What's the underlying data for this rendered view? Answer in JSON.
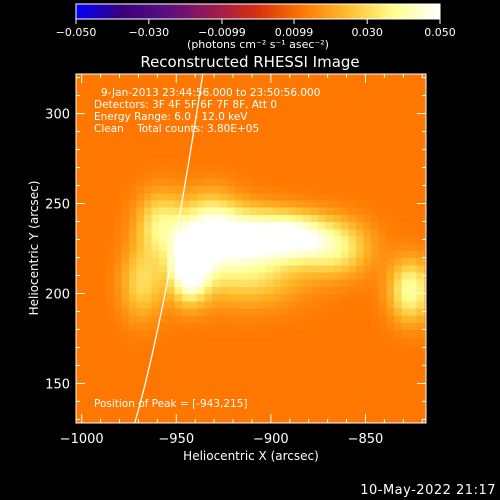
{
  "colorbar": {
    "ticks": [
      "-0.050",
      "-0.030",
      "-0.0099",
      "0.0099",
      "0.030",
      "0.050"
    ],
    "tick_values": [
      -0.05,
      -0.03,
      -0.0099,
      0.0099,
      0.03,
      0.05
    ],
    "range": [
      -0.05,
      0.05
    ],
    "units": "(photons cm⁻² s⁻¹ asec⁻²)",
    "colors": [
      "#0000ff",
      "#3a007a",
      "#5a0e80",
      "#9a1a50",
      "#d83010",
      "#ff7a00",
      "#ffc030",
      "#ffff90",
      "#ffffff"
    ]
  },
  "chart_data": {
    "type": "heatmap",
    "title": "Reconstructed RHESSI Image",
    "xlabel": "Heliocentric X (arcsec)",
    "ylabel": "Heliocentric Y (arcsec)",
    "xlim": [
      -1003,
      -818
    ],
    "ylim": [
      128,
      322
    ],
    "xticks": [
      -1000,
      -950,
      -900,
      -850
    ],
    "yticks": [
      150,
      200,
      250,
      300
    ],
    "xtick_labels": [
      "−1000",
      "−950",
      "−900",
      "−850"
    ],
    "ytick_labels": [
      "150",
      "200",
      "250",
      "300"
    ],
    "annotations": [
      "9-Jan-2013 23:44:56.000 to 23:50:56.000",
      "Detectors: 3F 4F 5F 6F 7F 8F, Att 0",
      "Energy Range: 6.0 - 12.0 keV",
      "Clean    Total counts: 3.80E+05"
    ],
    "peak_label": "Position of Peak = [-943,215]",
    "peak": [
      -943,
      215
    ],
    "solar_limb": [
      [
        -972,
        128
      ],
      [
        -955,
        205
      ],
      [
        -936,
        322
      ]
    ],
    "background_level": 0.012,
    "sources": [
      {
        "x": -943,
        "y": 216,
        "sx": 7,
        "sy": 13,
        "amp": 0.048
      },
      {
        "x": -932,
        "y": 235,
        "sx": 10,
        "sy": 14,
        "amp": 0.03
      },
      {
        "x": -912,
        "y": 232,
        "sx": 14,
        "sy": 11,
        "amp": 0.034
      },
      {
        "x": -888,
        "y": 232,
        "sx": 12,
        "sy": 9,
        "amp": 0.032
      },
      {
        "x": -866,
        "y": 226,
        "sx": 13,
        "sy": 11,
        "amp": 0.024
      },
      {
        "x": -826,
        "y": 202,
        "sx": 8,
        "sy": 12,
        "amp": 0.028
      },
      {
        "x": -958,
        "y": 238,
        "sx": 9,
        "sy": 13,
        "amp": 0.024
      },
      {
        "x": -968,
        "y": 206,
        "sx": 8,
        "sy": 14,
        "amp": 0.018
      },
      {
        "x": -912,
        "y": 210,
        "sx": 20,
        "sy": 12,
        "amp": 0.018
      }
    ]
  },
  "footer": {
    "date_stamp": "10-May-2022 21:17"
  }
}
